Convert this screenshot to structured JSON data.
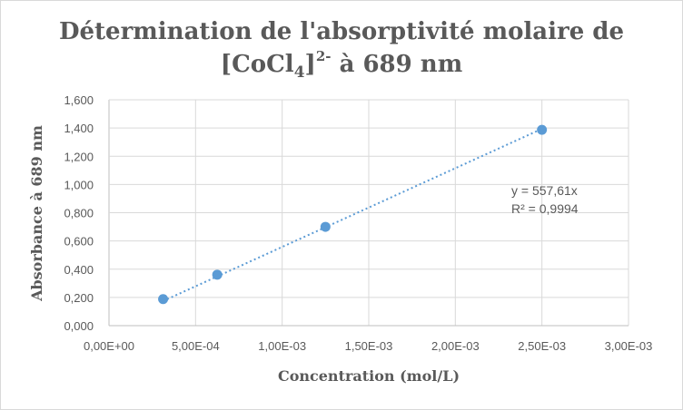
{
  "chart_data": {
    "type": "scatter",
    "title_line1": "Détermination de l'absorptivité molaire de",
    "title_line2_prefix": "[CoCl",
    "title_line2_sub": "4",
    "title_line2_bracket": "]",
    "title_line2_sup": "2-",
    "title_line2_suffix": " à 689 nm",
    "xlabel": "Concentration (mol/L)",
    "ylabel": "Absorbance à 689 nm",
    "xlim": [
      0,
      0.003
    ],
    "ylim": [
      0,
      1.6
    ],
    "x_ticks": [
      0,
      0.0005,
      0.001,
      0.0015,
      0.002,
      0.0025,
      0.003
    ],
    "x_tick_labels": [
      "0,00E+00",
      "5,00E-04",
      "1,00E-03",
      "1,50E-03",
      "2,00E-03",
      "2,50E-03",
      "3,00E-03"
    ],
    "y_ticks": [
      0,
      0.2,
      0.4,
      0.6,
      0.8,
      1.0,
      1.2,
      1.4,
      1.6
    ],
    "y_tick_labels": [
      "0,000",
      "0,200",
      "0,400",
      "0,600",
      "0,800",
      "1,000",
      "1,200",
      "1,400",
      "1,600"
    ],
    "grid": true,
    "series": [
      {
        "x": [
          0.0003125,
          0.000625,
          0.00125,
          0.0025
        ],
        "y": [
          0.188,
          0.361,
          0.7,
          1.387
        ],
        "color": "#5b9bd5"
      }
    ],
    "trendline": {
      "type": "linear",
      "slope": 557.61,
      "intercept": 0,
      "x_range": [
        0.0003125,
        0.0025
      ],
      "style": "dotted",
      "equation": "y = 557,61x",
      "r_squared": "R² = 0,9994"
    }
  }
}
